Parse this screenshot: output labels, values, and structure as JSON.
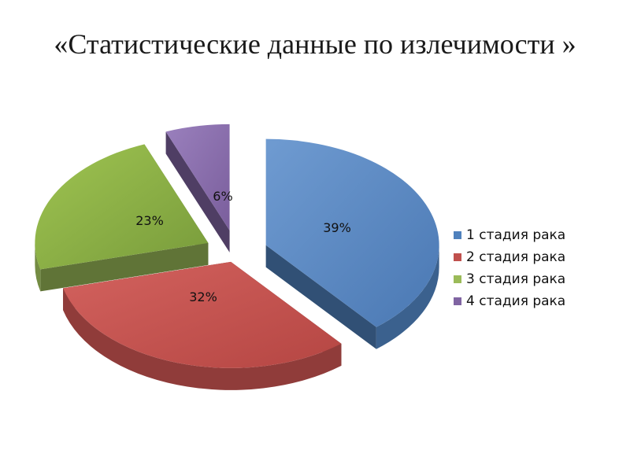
{
  "title": "«Статистические данные по излечимости »",
  "chart_data": {
    "type": "pie",
    "title": "",
    "categories": [
      "1 стадия рака",
      "2 стадия рака",
      "3 стадия рака",
      "4 стадия рака"
    ],
    "values": [
      39,
      32,
      23,
      6
    ],
    "labels": [
      "39%",
      "32%",
      "23%",
      "6%"
    ],
    "colors": [
      "#4f81bd",
      "#c0504d",
      "#9bbb59",
      "#8064a2"
    ],
    "legend_position": "right",
    "style": "3d-exploded"
  }
}
